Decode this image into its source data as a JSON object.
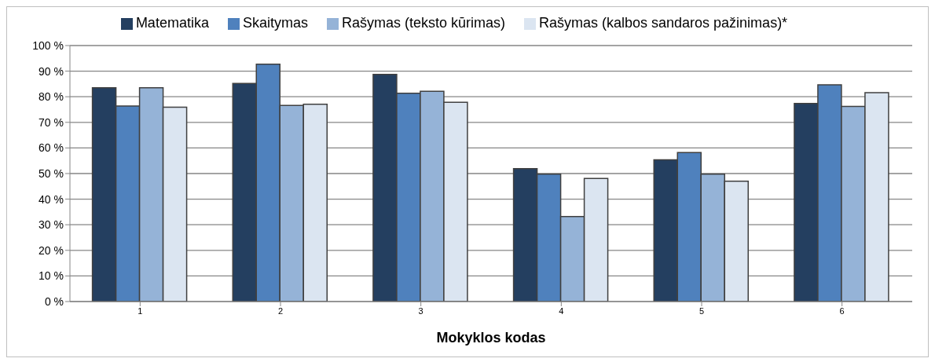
{
  "chart_data": {
    "type": "bar",
    "xlabel": "Mokyklos kodas",
    "categories": [
      "1",
      "2",
      "3",
      "4",
      "5",
      "6"
    ],
    "series": [
      {
        "name": "Matematika",
        "color": "#243f60",
        "values": [
          83.5,
          85.2,
          88.7,
          51.9,
          55.4,
          77.4
        ]
      },
      {
        "name": "Skaitymas",
        "color": "#4f81bd",
        "values": [
          76.4,
          92.7,
          81.4,
          49.8,
          58.2,
          84.7
        ]
      },
      {
        "name": "Rašymas (teksto kūrimas)",
        "color": "#95b3d7",
        "values": [
          83.5,
          76.6,
          82.1,
          33.2,
          49.8,
          76.2
        ]
      },
      {
        "name": "Rašymas (kalbos sandaros pažinimas)*",
        "color": "#dbe5f1",
        "values": [
          75.9,
          77.1,
          77.8,
          48.1,
          47.0,
          81.6
        ]
      }
    ],
    "ylim": [
      0,
      100
    ],
    "yticks": [
      {
        "value": 0,
        "label": "0 %"
      },
      {
        "value": 10,
        "label": "10 %"
      },
      {
        "value": 20,
        "label": "20 %"
      },
      {
        "value": 30,
        "label": "30 %"
      },
      {
        "value": 40,
        "label": "40 %"
      },
      {
        "value": 50,
        "label": "50 %"
      },
      {
        "value": 60,
        "label": "60 %"
      },
      {
        "value": 70,
        "label": "70 %"
      },
      {
        "value": 80,
        "label": "80 %"
      },
      {
        "value": 90,
        "label": "90 %"
      },
      {
        "value": 100,
        "label": "100 %"
      }
    ],
    "grid": "y",
    "legend": "top"
  }
}
